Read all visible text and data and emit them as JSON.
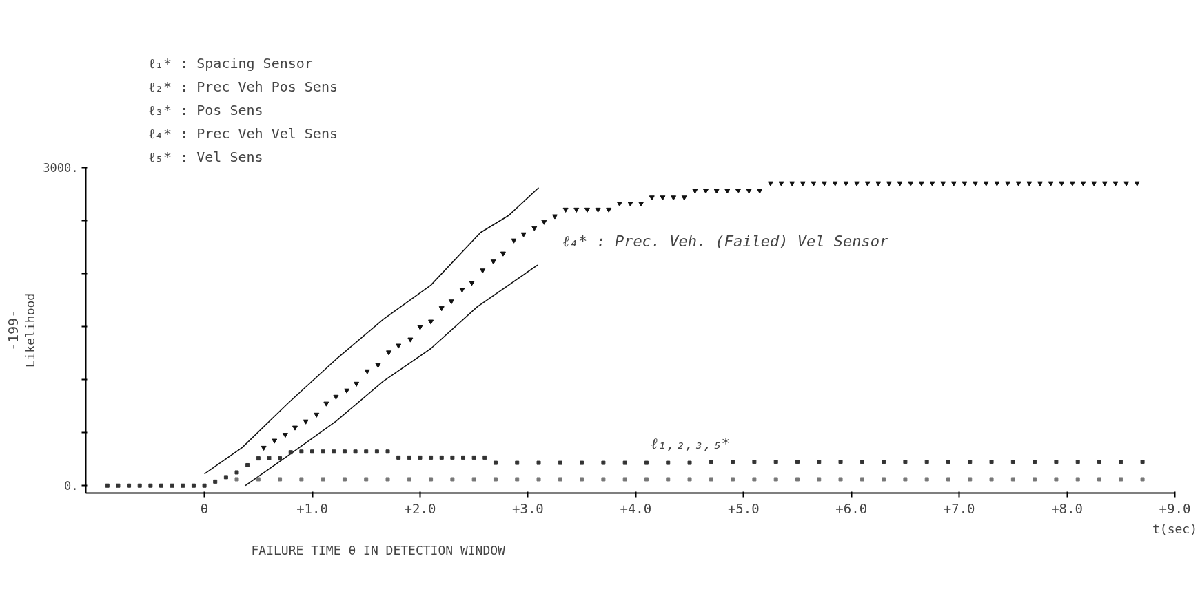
{
  "chart_data": {
    "type": "scatter",
    "xlabel": "t(sec)",
    "ylabel": "Likelihood",
    "xlim": [
      -1.1,
      9.0
    ],
    "ylim": [
      -70,
      3000
    ],
    "xticks": [
      {
        "value": 0,
        "label": "θ"
      },
      {
        "value": 1,
        "label": "+1.0"
      },
      {
        "value": 2,
        "label": "+2.0"
      },
      {
        "value": 3,
        "label": "+3.0"
      },
      {
        "value": 4,
        "label": "+4.0"
      },
      {
        "value": 5,
        "label": "+5.0"
      },
      {
        "value": 6,
        "label": "+6.0"
      },
      {
        "value": 7,
        "label": "+7.0"
      },
      {
        "value": 8,
        "label": "+8.0"
      },
      {
        "value": 9,
        "label": "+9.0"
      }
    ],
    "yticks": [
      {
        "value": 0,
        "label": "0."
      },
      {
        "value": 500,
        "label": null
      },
      {
        "value": 1000,
        "label": null
      },
      {
        "value": 1500,
        "label": null
      },
      {
        "value": 2000,
        "label": null
      },
      {
        "value": 2500,
        "label": null
      },
      {
        "value": 3000,
        "label": "3000."
      }
    ],
    "grid": false,
    "series": [
      {
        "marker": "triangle",
        "color": "#111111",
        "x": [
          0.55,
          0.65,
          0.75,
          0.84,
          0.94,
          1.04,
          1.13,
          1.22,
          1.32,
          1.41,
          1.51,
          1.61,
          1.71,
          1.8,
          1.91,
          2.0,
          2.1,
          2.2,
          2.29,
          2.39,
          2.48,
          2.58,
          2.68,
          2.77,
          2.87,
          2.96,
          3.06,
          3.15,
          3.25,
          3.35,
          3.45,
          3.55,
          3.65,
          3.75,
          3.85,
          3.95,
          4.05,
          4.15,
          4.25,
          4.35,
          4.45,
          4.55,
          4.65,
          4.75,
          4.85,
          4.95,
          5.05,
          5.15,
          5.25,
          5.35,
          5.45,
          5.55,
          5.65,
          5.75,
          5.85,
          5.95,
          6.05,
          6.15,
          6.25,
          6.35,
          6.45,
          6.55,
          6.65,
          6.75,
          6.85,
          6.95,
          7.05,
          7.15,
          7.25,
          7.35,
          7.45,
          7.55,
          7.65,
          7.75,
          7.85,
          7.95,
          8.05,
          8.15,
          8.25,
          8.35,
          8.45,
          8.55,
          8.65
        ],
        "values": [
          359,
          426,
          481,
          549,
          607,
          671,
          776,
          840,
          899,
          963,
          1080,
          1138,
          1258,
          1322,
          1380,
          1497,
          1549,
          1675,
          1739,
          1850,
          1914,
          2031,
          2116,
          2191,
          2314,
          2372,
          2431,
          2489,
          2542,
          2605,
          2605,
          2605,
          2605,
          2605,
          2662,
          2662,
          2662,
          2719,
          2719,
          2719,
          2719,
          2783,
          2783,
          2783,
          2783,
          2783,
          2783,
          2783,
          2853,
          2853,
          2853,
          2853,
          2853,
          2853,
          2853,
          2853,
          2853,
          2853,
          2853,
          2853,
          2853,
          2853,
          2853,
          2853,
          2853,
          2853,
          2853,
          2853,
          2853,
          2853,
          2853,
          2853,
          2853,
          2853,
          2853,
          2853,
          2853,
          2853,
          2853,
          2853,
          2853,
          2853,
          2853
        ]
      },
      {
        "type": "line",
        "color": "#111111",
        "x": [
          0.0,
          0.35,
          0.78,
          1.22,
          1.66,
          2.1,
          2.56,
          2.82,
          3.1
        ],
        "values": [
          111,
          359,
          782,
          1191,
          1570,
          1891,
          2387,
          2547,
          2810
        ]
      },
      {
        "type": "line",
        "color": "#111111",
        "x": [
          0.38,
          0.78,
          1.22,
          1.66,
          2.1,
          2.53,
          3.09
        ],
        "values": [
          0,
          286,
          607,
          986,
          1293,
          1687,
          2081
        ]
      },
      {
        "marker": "square",
        "color": "#333333",
        "x": [
          -0.9,
          -0.8,
          -0.7,
          -0.6,
          -0.5,
          -0.4,
          -0.3,
          -0.2,
          -0.1,
          0.0,
          0.1,
          0.2,
          0.3,
          0.4,
          0.5,
          0.6,
          0.7,
          0.8,
          0.9,
          1.0,
          1.1,
          1.2,
          1.3,
          1.4,
          1.5,
          1.6,
          1.7,
          1.8,
          1.9,
          2.0,
          2.1,
          2.2,
          2.3,
          2.4,
          2.5,
          2.6,
          2.7,
          2.9,
          3.1,
          3.3,
          3.5,
          3.7,
          3.9,
          4.1,
          4.3,
          4.5,
          4.7,
          4.9,
          5.1,
          5.3,
          5.5,
          5.7,
          5.9,
          6.1,
          6.3,
          6.5,
          6.7,
          6.9,
          7.1,
          7.3,
          7.5,
          7.7,
          7.9,
          8.1,
          8.3,
          8.5,
          8.7
        ],
        "values": [
          0,
          0,
          0,
          0,
          0,
          0,
          0,
          0,
          0,
          0,
          38,
          80,
          125,
          193,
          257,
          260,
          257,
          315,
          321,
          321,
          321,
          321,
          321,
          321,
          321,
          321,
          321,
          265,
          265,
          265,
          265,
          265,
          265,
          265,
          265,
          265,
          215,
          215,
          215,
          215,
          215,
          215,
          215,
          215,
          215,
          215,
          225,
          225,
          225,
          225,
          225,
          225,
          225,
          225,
          225,
          225,
          225,
          225,
          225,
          225,
          225,
          225,
          225,
          225,
          225,
          225,
          225
        ]
      },
      {
        "marker": "square",
        "color": "#777777",
        "x": [
          0.3,
          0.5,
          0.7,
          0.9,
          1.1,
          1.3,
          1.5,
          1.7,
          1.9,
          2.1,
          2.3,
          2.5,
          2.7,
          2.9,
          3.1,
          3.3,
          3.5,
          3.7,
          3.9,
          4.1,
          4.3,
          4.5,
          4.7,
          4.9,
          5.1,
          5.3,
          5.5,
          5.7,
          5.9,
          6.1,
          6.3,
          6.5,
          6.7,
          6.9,
          7.1,
          7.3,
          7.5,
          7.7,
          7.9,
          8.1,
          8.3,
          8.5,
          8.7
        ],
        "values": [
          60,
          60,
          60,
          60,
          60,
          60,
          60,
          60,
          60,
          60,
          60,
          60,
          60,
          60,
          60,
          60,
          60,
          60,
          60,
          60,
          60,
          60,
          60,
          60,
          60,
          60,
          60,
          60,
          60,
          60,
          60,
          60,
          60,
          60,
          60,
          60,
          60,
          60,
          60,
          60,
          60,
          60,
          60
        ]
      }
    ],
    "annotations": [
      "ℓ₁* : Spacing Sensor",
      "ℓ₂* : Prec Veh Pos Sens",
      "ℓ₃* : Pos Sens",
      "ℓ₄* : Prec Veh Vel Sens",
      "ℓ₅* : Vel Sens",
      "ℓ₄* : Prec. Veh. (Failed) Vel Sensor",
      "ℓ₁,₂,₃,₅*",
      "FAILURE TIME θ IN DETECTION WINDOW",
      "-199-"
    ]
  }
}
